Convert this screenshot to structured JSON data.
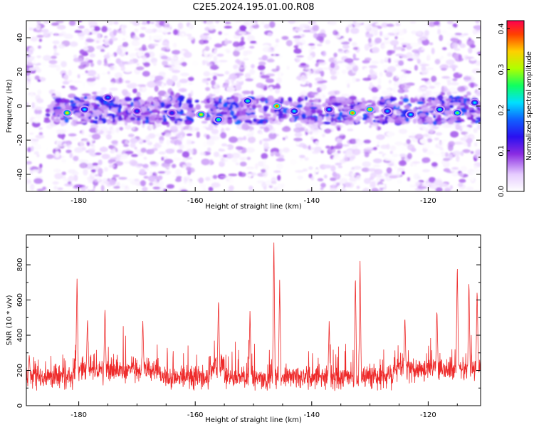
{
  "title": "C2E5.2024.195.01.00.R08",
  "colors": {
    "snr_line": "#ee2a2a",
    "axis": "#000000"
  },
  "chart_data": [
    {
      "type": "heatmap",
      "name": "spectrogram",
      "xlabel": "Height of straight line (km)",
      "ylabel": "Frequency (Hz)",
      "xlim": [
        -189,
        -111
      ],
      "ylim": [
        -50,
        50
      ],
      "xticks": [
        -180,
        -160,
        -140,
        -120
      ],
      "yticks": [
        -40,
        -20,
        0,
        20,
        40
      ],
      "colorbar": {
        "label": "Normalized spectral amplitude",
        "range": [
          0.0,
          0.42
        ],
        "ticks": [
          "0.0",
          "0.1",
          "0.2",
          "0.3",
          "0.4"
        ],
        "tick_values": [
          0.0,
          0.1,
          0.2,
          0.3,
          0.4
        ]
      },
      "signal_band_hz": [
        -10,
        5
      ],
      "hotspots": [
        {
          "x": -182,
          "y": -4,
          "v": 0.34
        },
        {
          "x": -179,
          "y": -2,
          "v": 0.22
        },
        {
          "x": -175,
          "y": 5,
          "v": 0.18
        },
        {
          "x": -170,
          "y": -3,
          "v": 0.16
        },
        {
          "x": -164,
          "y": -4,
          "v": 0.15
        },
        {
          "x": -159,
          "y": -5,
          "v": 0.34
        },
        {
          "x": -156,
          "y": -8,
          "v": 0.26
        },
        {
          "x": -151,
          "y": 3,
          "v": 0.24
        },
        {
          "x": -146,
          "y": 0,
          "v": 0.38
        },
        {
          "x": -143,
          "y": -3,
          "v": 0.22
        },
        {
          "x": -137,
          "y": -2,
          "v": 0.2
        },
        {
          "x": -133,
          "y": -4,
          "v": 0.37
        },
        {
          "x": -130,
          "y": -2,
          "v": 0.36
        },
        {
          "x": -127,
          "y": -3,
          "v": 0.2
        },
        {
          "x": -123,
          "y": -5,
          "v": 0.22
        },
        {
          "x": -118,
          "y": -2,
          "v": 0.24
        },
        {
          "x": -115,
          "y": -4,
          "v": 0.28
        },
        {
          "x": -112,
          "y": 2,
          "v": 0.22
        }
      ]
    },
    {
      "type": "line",
      "name": "snr",
      "xlabel": "Height of straight line (km)",
      "ylabel": "SNR (10 * v/v)",
      "xlim": [
        -189,
        -111
      ],
      "ylim": [
        0,
        970
      ],
      "xticks": [
        -180,
        -160,
        -140,
        -120
      ],
      "yticks": [
        0,
        200,
        400,
        600,
        800
      ],
      "baseline_mean": 160,
      "peaks": [
        {
          "x": -188.5,
          "y": 290
        },
        {
          "x": -180.3,
          "y": 740
        },
        {
          "x": -178.5,
          "y": 505
        },
        {
          "x": -175.5,
          "y": 565
        },
        {
          "x": -169.0,
          "y": 485
        },
        {
          "x": -156.0,
          "y": 618
        },
        {
          "x": -150.6,
          "y": 545
        },
        {
          "x": -146.5,
          "y": 970
        },
        {
          "x": -145.5,
          "y": 720
        },
        {
          "x": -137.0,
          "y": 480
        },
        {
          "x": -132.5,
          "y": 760
        },
        {
          "x": -131.7,
          "y": 825
        },
        {
          "x": -124.0,
          "y": 515
        },
        {
          "x": -118.5,
          "y": 555
        },
        {
          "x": -115.0,
          "y": 820
        },
        {
          "x": -113.0,
          "y": 720
        },
        {
          "x": -111.6,
          "y": 675
        }
      ]
    }
  ]
}
